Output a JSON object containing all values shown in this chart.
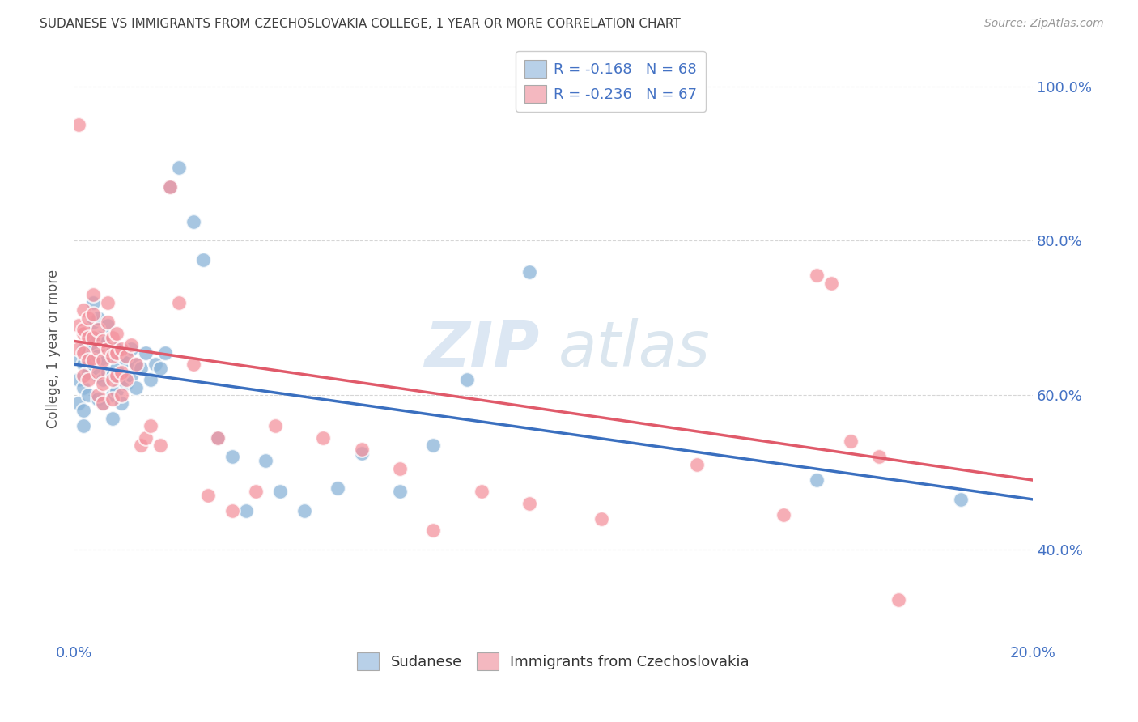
{
  "title": "SUDANESE VS IMMIGRANTS FROM CZECHOSLOVAKIA COLLEGE, 1 YEAR OR MORE CORRELATION CHART",
  "source": "Source: ZipAtlas.com",
  "ylabel": "College, 1 year or more",
  "xlim": [
    0.0,
    0.2
  ],
  "ylim": [
    0.28,
    1.04
  ],
  "yticks": [
    0.4,
    0.6,
    0.8,
    1.0
  ],
  "ytick_labels": [
    "40.0%",
    "60.0%",
    "80.0%",
    "100.0%"
  ],
  "xticks": [
    0.0,
    0.025,
    0.05,
    0.075,
    0.1,
    0.125,
    0.15,
    0.175,
    0.2
  ],
  "watermark_zip": "ZIP",
  "watermark_atlas": "atlas",
  "blue_color": "#8ab4d8",
  "pink_color": "#f4939e",
  "blue_line_color": "#3a6fbf",
  "pink_line_color": "#e05a6a",
  "legend_blue_color": "#b8d0e8",
  "legend_pink_color": "#f4b8c0",
  "blue_R": -0.168,
  "blue_N": 68,
  "pink_R": -0.236,
  "pink_N": 67,
  "blue_scatter_x": [
    0.001,
    0.001,
    0.001,
    0.002,
    0.002,
    0.002,
    0.002,
    0.002,
    0.003,
    0.003,
    0.003,
    0.003,
    0.004,
    0.004,
    0.004,
    0.004,
    0.005,
    0.005,
    0.005,
    0.005,
    0.005,
    0.006,
    0.006,
    0.006,
    0.006,
    0.007,
    0.007,
    0.007,
    0.008,
    0.008,
    0.008,
    0.008,
    0.009,
    0.009,
    0.009,
    0.01,
    0.01,
    0.01,
    0.011,
    0.011,
    0.012,
    0.012,
    0.013,
    0.013,
    0.014,
    0.015,
    0.016,
    0.017,
    0.018,
    0.019,
    0.02,
    0.022,
    0.025,
    0.027,
    0.03,
    0.033,
    0.036,
    0.04,
    0.043,
    0.048,
    0.055,
    0.06,
    0.068,
    0.075,
    0.082,
    0.095,
    0.155,
    0.185
  ],
  "blue_scatter_y": [
    0.645,
    0.62,
    0.59,
    0.66,
    0.64,
    0.61,
    0.58,
    0.56,
    0.68,
    0.655,
    0.63,
    0.6,
    0.72,
    0.695,
    0.665,
    0.64,
    0.7,
    0.675,
    0.65,
    0.625,
    0.595,
    0.67,
    0.645,
    0.62,
    0.59,
    0.69,
    0.66,
    0.63,
    0.65,
    0.625,
    0.6,
    0.57,
    0.66,
    0.635,
    0.605,
    0.65,
    0.62,
    0.59,
    0.645,
    0.615,
    0.66,
    0.625,
    0.64,
    0.61,
    0.635,
    0.655,
    0.62,
    0.64,
    0.635,
    0.655,
    0.87,
    0.895,
    0.825,
    0.775,
    0.545,
    0.52,
    0.45,
    0.515,
    0.475,
    0.45,
    0.48,
    0.525,
    0.475,
    0.535,
    0.62,
    0.76,
    0.49,
    0.465
  ],
  "pink_scatter_x": [
    0.001,
    0.001,
    0.001,
    0.002,
    0.002,
    0.002,
    0.002,
    0.002,
    0.003,
    0.003,
    0.003,
    0.003,
    0.004,
    0.004,
    0.004,
    0.004,
    0.005,
    0.005,
    0.005,
    0.005,
    0.006,
    0.006,
    0.006,
    0.006,
    0.007,
    0.007,
    0.007,
    0.008,
    0.008,
    0.008,
    0.008,
    0.009,
    0.009,
    0.009,
    0.01,
    0.01,
    0.01,
    0.011,
    0.011,
    0.012,
    0.013,
    0.014,
    0.015,
    0.016,
    0.018,
    0.02,
    0.022,
    0.025,
    0.028,
    0.03,
    0.033,
    0.038,
    0.042,
    0.052,
    0.06,
    0.068,
    0.075,
    0.085,
    0.095,
    0.11,
    0.13,
    0.148,
    0.155,
    0.158,
    0.162,
    0.168,
    0.172
  ],
  "pink_scatter_y": [
    0.69,
    0.66,
    0.95,
    0.68,
    0.655,
    0.625,
    0.71,
    0.685,
    0.7,
    0.675,
    0.645,
    0.62,
    0.73,
    0.705,
    0.675,
    0.645,
    0.685,
    0.66,
    0.63,
    0.6,
    0.67,
    0.645,
    0.615,
    0.59,
    0.72,
    0.695,
    0.66,
    0.675,
    0.65,
    0.62,
    0.595,
    0.68,
    0.655,
    0.625,
    0.66,
    0.63,
    0.6,
    0.65,
    0.62,
    0.665,
    0.64,
    0.535,
    0.545,
    0.56,
    0.535,
    0.87,
    0.72,
    0.64,
    0.47,
    0.545,
    0.45,
    0.475,
    0.56,
    0.545,
    0.53,
    0.505,
    0.425,
    0.475,
    0.46,
    0.44,
    0.51,
    0.445,
    0.755,
    0.745,
    0.54,
    0.52,
    0.335
  ],
  "blue_line": {
    "x0": 0.0,
    "x1": 0.2,
    "y0": 0.64,
    "y1": 0.465
  },
  "pink_line": {
    "x0": 0.0,
    "x1": 0.2,
    "y0": 0.67,
    "y1": 0.49
  },
  "background_color": "#ffffff",
  "grid_color": "#cccccc",
  "title_color": "#404040",
  "tick_label_color": "#4472c4"
}
